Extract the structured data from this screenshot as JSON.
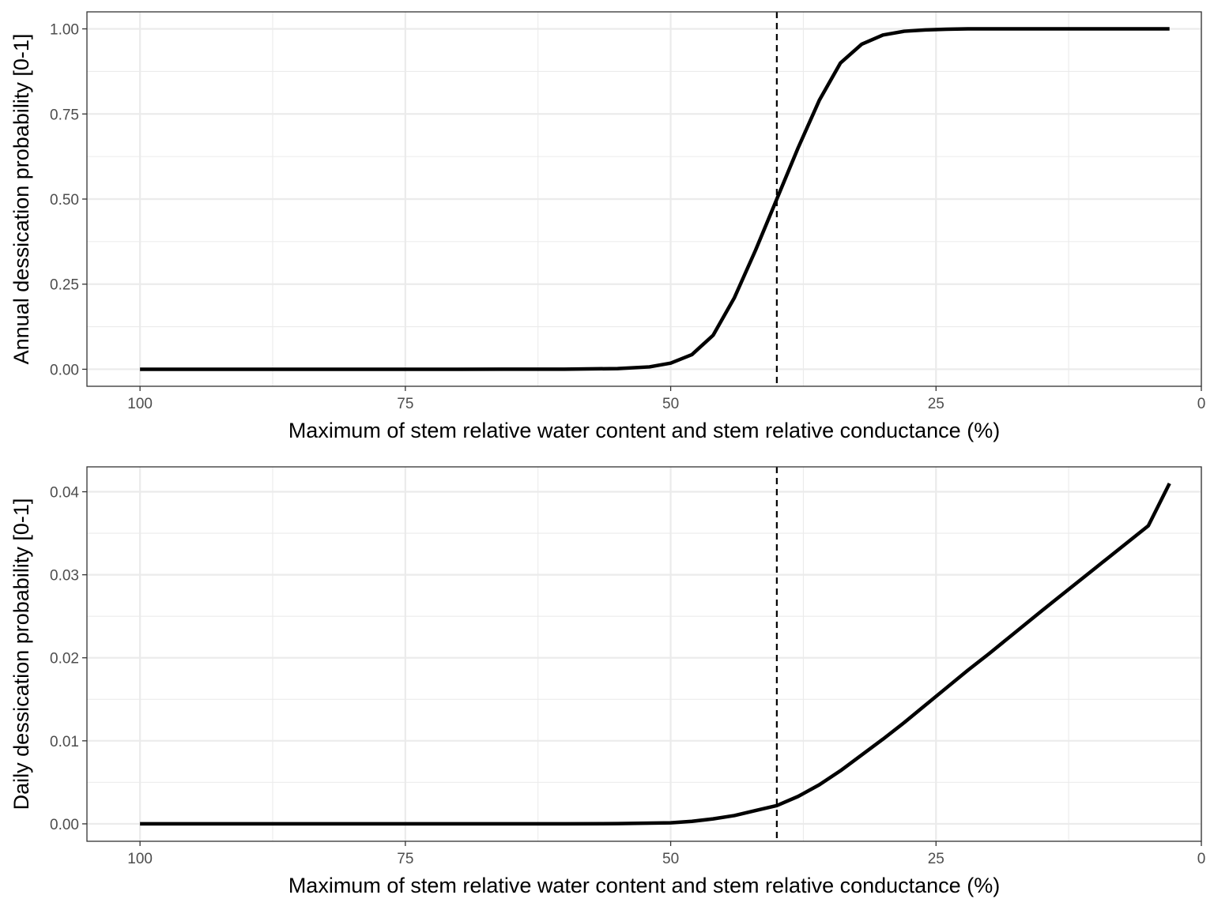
{
  "chart_data": [
    {
      "type": "line",
      "xlabel": "Maximum of stem relative water content and stem relative conductance (%)",
      "ylabel": "Annual dessication probability [0-1]",
      "xlim": [
        105,
        0
      ],
      "ylim": [
        -0.05,
        1.05
      ],
      "x_reversed": true,
      "grid": true,
      "x_ticks": [
        100,
        75,
        50,
        25,
        0
      ],
      "x_tick_labels": [
        "100",
        "75",
        "50",
        "25",
        "0"
      ],
      "y_ticks": [
        0,
        0.25,
        0.5,
        0.75,
        1.0
      ],
      "y_tick_labels": [
        "0.00",
        "0.25",
        "0.50",
        "0.75",
        "1.00"
      ],
      "threshold_line": {
        "x": 40,
        "style": "dashed"
      },
      "series": [
        {
          "x": [
            100,
            90,
            80,
            70,
            60,
            55,
            52,
            50,
            48,
            46,
            44,
            42,
            40,
            38,
            36,
            34,
            32,
            30,
            28,
            26,
            24,
            22,
            20,
            15,
            10,
            5,
            3
          ],
          "y": [
            0.0,
            0.0,
            0.0,
            0.0,
            0.0002,
            0.002,
            0.007,
            0.018,
            0.043,
            0.1,
            0.21,
            0.35,
            0.5,
            0.65,
            0.79,
            0.9,
            0.955,
            0.982,
            0.993,
            0.997,
            0.999,
            1.0,
            1.0,
            1.0,
            1.0,
            1.0,
            1.0
          ]
        }
      ]
    },
    {
      "type": "line",
      "xlabel": "Maximum of stem relative water content and stem relative conductance  (%)",
      "ylabel": "Daily dessication probability [0-1]",
      "xlim": [
        105,
        0
      ],
      "ylim": [
        -0.0021,
        0.043
      ],
      "x_reversed": true,
      "grid": true,
      "x_ticks": [
        100,
        75,
        50,
        25,
        0
      ],
      "x_tick_labels": [
        "100",
        "75",
        "50",
        "25",
        "0"
      ],
      "y_ticks": [
        0,
        0.01,
        0.02,
        0.03,
        0.04
      ],
      "y_tick_labels": [
        "0.00",
        "0.01",
        "0.02",
        "0.03",
        "0.04"
      ],
      "threshold_line": {
        "x": 40,
        "style": "dashed"
      },
      "series": [
        {
          "x": [
            100,
            90,
            80,
            70,
            60,
            55,
            50,
            48,
            46,
            44,
            42,
            40,
            38,
            36,
            34,
            32,
            30,
            28,
            26,
            24,
            22,
            20,
            15,
            10,
            5,
            3
          ],
          "y": [
            0.0,
            0.0,
            0.0,
            0.0,
            0.0,
            3e-05,
            0.00012,
            0.0003,
            0.0006,
            0.001,
            0.0016,
            0.0022,
            0.0033,
            0.0047,
            0.0064,
            0.0083,
            0.0102,
            0.0122,
            0.0143,
            0.0164,
            0.0185,
            0.0205,
            0.0257,
            0.0308,
            0.0359,
            0.041
          ]
        }
      ]
    }
  ]
}
